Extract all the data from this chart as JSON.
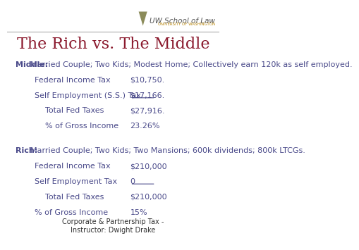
{
  "title": "The Rich vs. The Middle",
  "title_color": "#8B1A2E",
  "title_fontsize": 16,
  "bg_color": "#FFFFFF",
  "footer": "Corporate & Partnership Tax -\nInstructor: Dwight Drake",
  "footer_color": "#333333",
  "footer_fontsize": 7,
  "middle_label": "Middle:",
  "middle_desc": "  Married Couple; Two Kids; Modest Home; Collectively earn 120k as self employed.",
  "middle_rows": [
    {
      "label": "Federal Income Tax",
      "value": "$10,750.",
      "underline": false,
      "indent": 0.13
    },
    {
      "label": "Self Employment (S.S.) Tax",
      "value": "$17,166.",
      "underline": true,
      "indent": 0.13
    },
    {
      "label": "Total Fed Taxes",
      "value": "$27,916.",
      "underline": false,
      "indent": 0.18
    },
    {
      "label": "% of Gross Income",
      "value": "23.26%",
      "underline": false,
      "indent": 0.18
    }
  ],
  "rich_label": "Rich:",
  "rich_desc": "  Married Couple; Two Kids; Two Mansions; 600k dividends; 800k LTCGs.",
  "rich_rows": [
    {
      "label": "Federal Income Tax",
      "value": "$210,000",
      "underline": false,
      "indent": 0.13
    },
    {
      "label": "Self Employment Tax",
      "value": "0",
      "underline": true,
      "indent": 0.13
    },
    {
      "label": "Total Fed Taxes",
      "value": "$210,000",
      "underline": false,
      "indent": 0.18
    },
    {
      "label": "% of Gross Income",
      "value": "15%",
      "underline": false,
      "indent": 0.13
    }
  ],
  "label_color": "#4A4A8A",
  "value_color": "#4A4A8A",
  "section_label_color": "#4A4A8A",
  "label_fontsize": 8,
  "desc_fontsize": 8
}
